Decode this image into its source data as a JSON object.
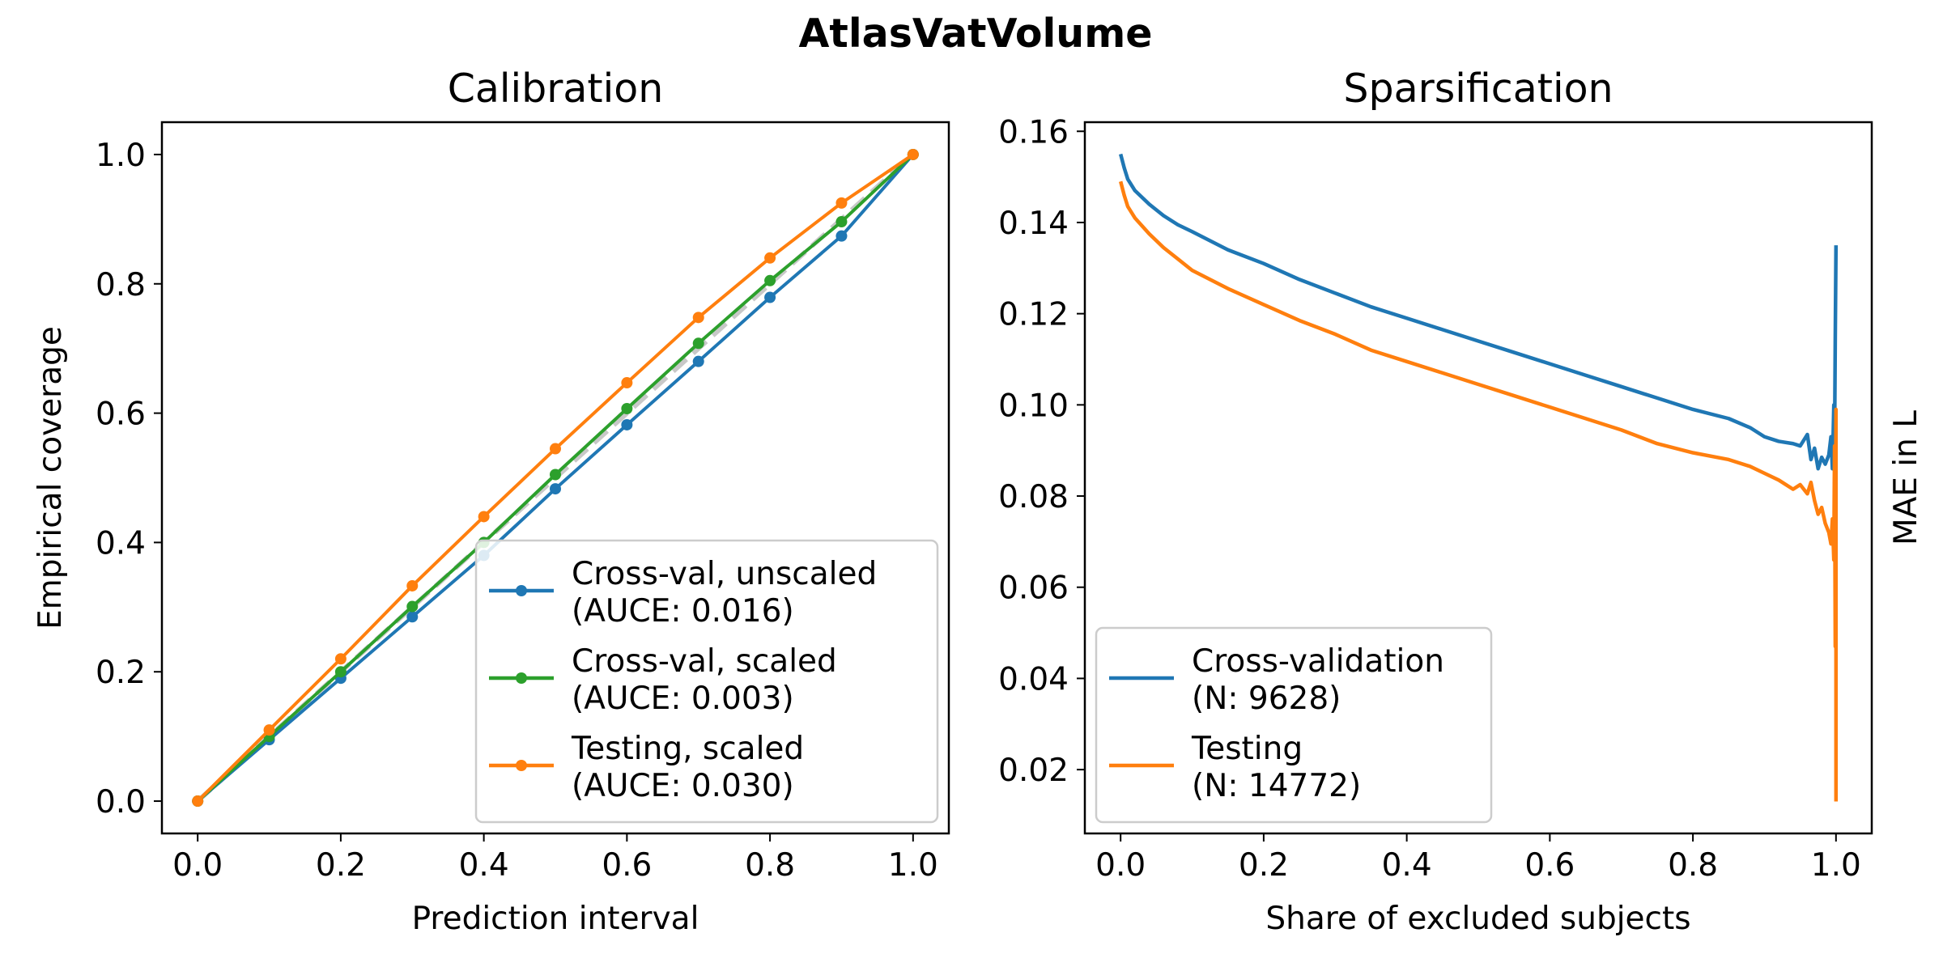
{
  "figure": {
    "suptitle": "AtlasVatVolume"
  },
  "chart_data": [
    {
      "type": "line",
      "title": "Calibration",
      "xlabel": "Prediction interval",
      "ylabel": "Empirical coverage",
      "xlim": [
        -0.05,
        1.05
      ],
      "ylim": [
        -0.05,
        1.05
      ],
      "xticks": [
        "0.0",
        "0.2",
        "0.4",
        "0.6",
        "0.8",
        "1.0"
      ],
      "yticks": [
        "0.0",
        "0.2",
        "0.4",
        "0.6",
        "0.8",
        "1.0"
      ],
      "grid": false,
      "legend_position": "lower-right",
      "reference_line": {
        "x": [
          0,
          1
        ],
        "y": [
          0,
          1
        ],
        "style": "dashed",
        "color": "#c8c8c8"
      },
      "x": [
        0.0,
        0.1,
        0.2,
        0.3,
        0.4,
        0.5,
        0.6,
        0.7,
        0.8,
        0.9,
        1.0
      ],
      "series": [
        {
          "name": "Cross-val, unscaled",
          "metric": "(AUCE: 0.016)",
          "color": "#1f77b4",
          "values": [
            0.0,
            0.095,
            0.19,
            0.285,
            0.38,
            0.483,
            0.582,
            0.68,
            0.779,
            0.874,
            1.0
          ]
        },
        {
          "name": "Cross-val, scaled",
          "metric": "(AUCE: 0.003)",
          "color": "#2ca02c",
          "values": [
            0.0,
            0.1,
            0.2,
            0.301,
            0.4,
            0.505,
            0.607,
            0.708,
            0.805,
            0.896,
            1.0
          ]
        },
        {
          "name": "Testing, scaled",
          "metric": "(AUCE: 0.030)",
          "color": "#ff7f0e",
          "values": [
            0.0,
            0.11,
            0.22,
            0.333,
            0.44,
            0.545,
            0.647,
            0.748,
            0.84,
            0.925,
            1.0
          ]
        }
      ]
    },
    {
      "type": "line",
      "title": "Sparsification",
      "xlabel": "Share of excluded subjects",
      "ylabel": "MAE in L",
      "ylabel_side": "right",
      "xlim": [
        -0.05,
        1.05
      ],
      "ylim": [
        0.006,
        0.162
      ],
      "xticks": [
        "0.0",
        "0.2",
        "0.4",
        "0.6",
        "0.8",
        "1.0"
      ],
      "yticks": [
        "0.02",
        "0.04",
        "0.06",
        "0.08",
        "0.10",
        "0.12",
        "0.14",
        "0.16"
      ],
      "grid": false,
      "legend_position": "lower-left",
      "series": [
        {
          "name": "Cross-validation",
          "metric": "(N: 9628)",
          "color": "#1f77b4",
          "points": [
            [
              0.0,
              0.155
            ],
            [
              0.005,
              0.152
            ],
            [
              0.01,
              0.1495
            ],
            [
              0.02,
              0.147
            ],
            [
              0.04,
              0.144
            ],
            [
              0.06,
              0.1415
            ],
            [
              0.08,
              0.1395
            ],
            [
              0.1,
              0.138
            ],
            [
              0.15,
              0.134
            ],
            [
              0.2,
              0.131
            ],
            [
              0.25,
              0.1275
            ],
            [
              0.3,
              0.1245
            ],
            [
              0.35,
              0.1215
            ],
            [
              0.4,
              0.119
            ],
            [
              0.45,
              0.1165
            ],
            [
              0.5,
              0.114
            ],
            [
              0.55,
              0.1115
            ],
            [
              0.6,
              0.109
            ],
            [
              0.65,
              0.1065
            ],
            [
              0.7,
              0.104
            ],
            [
              0.75,
              0.1015
            ],
            [
              0.8,
              0.099
            ],
            [
              0.85,
              0.097
            ],
            [
              0.88,
              0.095
            ],
            [
              0.9,
              0.093
            ],
            [
              0.92,
              0.092
            ],
            [
              0.94,
              0.0915
            ],
            [
              0.95,
              0.091
            ],
            [
              0.96,
              0.0935
            ],
            [
              0.965,
              0.088
            ],
            [
              0.97,
              0.0905
            ],
            [
              0.975,
              0.086
            ],
            [
              0.98,
              0.0885
            ],
            [
              0.985,
              0.087
            ],
            [
              0.99,
              0.089
            ],
            [
              0.993,
              0.093
            ],
            [
              0.995,
              0.086
            ],
            [
              0.997,
              0.1
            ],
            [
              0.998,
              0.091
            ],
            [
              0.999,
              0.115
            ],
            [
              1.0,
              0.135
            ]
          ]
        },
        {
          "name": "Testing",
          "metric": "(N: 14772)",
          "color": "#ff7f0e",
          "points": [
            [
              0.0,
              0.149
            ],
            [
              0.005,
              0.146
            ],
            [
              0.01,
              0.1435
            ],
            [
              0.02,
              0.141
            ],
            [
              0.04,
              0.1375
            ],
            [
              0.06,
              0.1345
            ],
            [
              0.08,
              0.132
            ],
            [
              0.1,
              0.1295
            ],
            [
              0.15,
              0.1255
            ],
            [
              0.2,
              0.122
            ],
            [
              0.25,
              0.1185
            ],
            [
              0.3,
              0.1155
            ],
            [
              0.35,
              0.112
            ],
            [
              0.4,
              0.1095
            ],
            [
              0.45,
              0.107
            ],
            [
              0.5,
              0.1045
            ],
            [
              0.55,
              0.102
            ],
            [
              0.6,
              0.0995
            ],
            [
              0.65,
              0.097
            ],
            [
              0.7,
              0.0945
            ],
            [
              0.75,
              0.0915
            ],
            [
              0.8,
              0.0895
            ],
            [
              0.85,
              0.088
            ],
            [
              0.88,
              0.0865
            ],
            [
              0.9,
              0.085
            ],
            [
              0.92,
              0.0835
            ],
            [
              0.94,
              0.0815
            ],
            [
              0.95,
              0.0825
            ],
            [
              0.96,
              0.0805
            ],
            [
              0.965,
              0.083
            ],
            [
              0.97,
              0.079
            ],
            [
              0.975,
              0.076
            ],
            [
              0.98,
              0.0775
            ],
            [
              0.985,
              0.074
            ],
            [
              0.99,
              0.072
            ],
            [
              0.993,
              0.0695
            ],
            [
              0.995,
              0.075
            ],
            [
              0.997,
              0.066
            ],
            [
              0.998,
              0.091
            ],
            [
              0.999,
              0.047
            ],
            [
              1.0,
              0.099
            ],
            [
              1.0,
              0.013
            ]
          ]
        }
      ]
    }
  ]
}
